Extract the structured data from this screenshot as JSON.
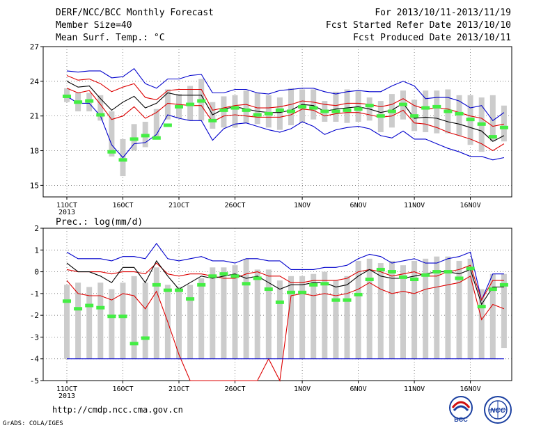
{
  "header": {
    "title": "DERF/NCC/BCC Monthly Forecast",
    "member_size": "Member Size=40",
    "variable": "Mean Surf. Temp.: °C",
    "period": "For 2013/10/11-2013/11/19",
    "fcst_started": "Fcst Started Refer Date 2013/10/10",
    "fcst_produced": "Fcst Produced Date 2013/10/11"
  },
  "footer": {
    "url": "http://cmdp.ncc.cma.gov.cn",
    "grads": "GrADS: COLA/IGES",
    "logo_bcc": "BCC",
    "logo_ncc": "NCC"
  },
  "colors": {
    "max": "#0000cc",
    "spread": "#dd0000",
    "mean": "#000000",
    "bar": "#cccccc",
    "obs": "#44ee44"
  },
  "chart_data": [
    {
      "type": "line",
      "title": "Mean Surf. Temp.: °C",
      "x": "days since forecast start, 2013/10/11 to 2013/11/19",
      "xticks": [
        "11OCT",
        "16OCT",
        "21OCT",
        "26OCT",
        "1NOV",
        "6NOV",
        "11NOV",
        "16NOV"
      ],
      "xtick_days": [
        0,
        5,
        10,
        15,
        21,
        26,
        31,
        36
      ],
      "xtick_year": "2013",
      "ylim": [
        14,
        27
      ],
      "yticks": [
        "15",
        "18",
        "21",
        "24",
        "27"
      ],
      "ytick_values": [
        15,
        18,
        21,
        24,
        27
      ],
      "grid": true,
      "series": [
        {
          "name": "max",
          "color": "#0000cc",
          "values": [
            24.9,
            24.8,
            24.9,
            24.9,
            24.3,
            24.4,
            25.1,
            23.8,
            23.4,
            24.2,
            24.2,
            24.5,
            24.6,
            23.0,
            23.0,
            23.3,
            23.3,
            23.0,
            22.9,
            23.2,
            23.3,
            23.4,
            23.4,
            23.1,
            22.9,
            23.1,
            23.2,
            23.1,
            23.1,
            23.6,
            24.0,
            23.6,
            22.5,
            22.6,
            22.6,
            22.3,
            21.7,
            21.9,
            20.6,
            21.3
          ]
        },
        {
          "name": "upper",
          "color": "#dd0000",
          "values": [
            24.5,
            24.1,
            24.2,
            23.8,
            23.1,
            23.5,
            23.8,
            22.6,
            22.4,
            23.2,
            23.3,
            23.3,
            23.3,
            21.5,
            21.7,
            21.9,
            22.0,
            21.7,
            21.7,
            21.8,
            22.0,
            22.3,
            22.2,
            22.0,
            21.9,
            22.1,
            22.1,
            22.0,
            21.8,
            22.0,
            22.5,
            21.9,
            21.6,
            21.7,
            21.6,
            21.3,
            21.0,
            20.8,
            20.1,
            20.3
          ]
        },
        {
          "name": "mean",
          "color": "#000000",
          "values": [
            24.0,
            23.5,
            23.6,
            22.5,
            21.5,
            22.2,
            22.7,
            21.7,
            22.1,
            23.0,
            22.8,
            22.8,
            22.8,
            21.1,
            21.6,
            21.8,
            21.6,
            21.4,
            21.3,
            21.3,
            21.5,
            22.0,
            21.9,
            21.4,
            21.6,
            21.7,
            21.8,
            21.6,
            21.3,
            21.5,
            22.1,
            20.8,
            20.9,
            20.8,
            20.5,
            20.3,
            20.0,
            19.7,
            18.8,
            19.3
          ]
        },
        {
          "name": "lower",
          "color": "#dd0000",
          "values": [
            23.4,
            23.0,
            23.2,
            22.0,
            20.7,
            21.0,
            21.8,
            20.8,
            21.3,
            22.1,
            22.0,
            21.9,
            21.9,
            20.5,
            21.0,
            21.1,
            21.0,
            20.9,
            20.9,
            20.9,
            21.1,
            21.6,
            21.5,
            21.0,
            21.2,
            21.3,
            21.3,
            21.1,
            20.9,
            21.0,
            21.5,
            20.4,
            20.3,
            20.0,
            19.6,
            19.3,
            19.0,
            18.6,
            18.0,
            18.6
          ]
        },
        {
          "name": "min",
          "color": "#0000cc",
          "values": [
            22.7,
            22.1,
            22.1,
            21.0,
            18.5,
            17.4,
            18.6,
            18.7,
            19.4,
            21.1,
            20.8,
            20.6,
            20.6,
            18.9,
            19.9,
            20.3,
            20.4,
            20.1,
            19.8,
            19.6,
            19.9,
            20.5,
            20.1,
            19.4,
            19.8,
            20.0,
            20.1,
            19.9,
            19.3,
            19.1,
            19.7,
            19.0,
            19.0,
            18.6,
            18.2,
            17.9,
            17.5,
            17.5,
            17.2,
            17.4
          ]
        }
      ],
      "bars": [
        [
          22.2,
          23.4
        ],
        [
          21.4,
          23.0
        ],
        [
          21.4,
          23.0
        ],
        [
          20.6,
          22.8
        ],
        [
          17.5,
          21.4
        ],
        [
          15.8,
          19.0
        ],
        [
          18.0,
          20.3
        ],
        [
          18.3,
          20.5
        ],
        [
          19.0,
          21.6
        ],
        [
          20.7,
          23.3
        ],
        [
          20.8,
          22.9
        ],
        [
          20.6,
          23.6
        ],
        [
          20.6,
          24.2
        ],
        [
          19.9,
          22.2
        ],
        [
          20.0,
          22.7
        ],
        [
          20.0,
          22.8
        ],
        [
          20.4,
          23.2
        ],
        [
          20.3,
          23.0
        ],
        [
          20.0,
          22.8
        ],
        [
          19.8,
          22.6
        ],
        [
          20.2,
          23.4
        ],
        [
          20.4,
          23.3
        ],
        [
          20.7,
          23.3
        ],
        [
          20.5,
          22.3
        ],
        [
          20.5,
          23.1
        ],
        [
          20.4,
          23.3
        ],
        [
          20.5,
          23.2
        ],
        [
          20.6,
          22.6
        ],
        [
          19.6,
          22.3
        ],
        [
          20.0,
          22.9
        ],
        [
          20.7,
          23.2
        ],
        [
          19.7,
          22.4
        ],
        [
          19.6,
          23.2
        ],
        [
          19.5,
          23.2
        ],
        [
          19.5,
          23.3
        ],
        [
          19.3,
          22.8
        ],
        [
          18.5,
          22.8
        ],
        [
          17.9,
          22.6
        ],
        [
          18.8,
          22.8
        ],
        [
          18.8,
          21.9
        ]
      ],
      "obs": [
        22.7,
        22.2,
        22.3,
        21.1,
        17.9,
        17.2,
        19.0,
        19.3,
        19.1,
        20.2,
        21.8,
        22.0,
        22.3,
        20.6,
        21.5,
        21.7,
        21.5,
        21.1,
        21.2,
        21.5,
        21.4,
        21.8,
        21.7,
        21.4,
        21.4,
        21.5,
        21.6,
        21.9,
        21.0,
        21.4,
        22.0,
        21.0,
        21.7,
        21.8,
        21.4,
        21.2,
        20.7,
        20.3,
        19.2,
        20.0
      ]
    },
    {
      "type": "line",
      "title": "Prec.: log(mm/d)",
      "x": "days since forecast start, 2013/10/11 to 2013/11/19",
      "xticks": [
        "11OCT",
        "16OCT",
        "21OCT",
        "26OCT",
        "1NOV",
        "6NOV",
        "11NOV",
        "16NOV"
      ],
      "xtick_days": [
        0,
        5,
        10,
        15,
        21,
        26,
        31,
        36
      ],
      "xtick_year": "2013",
      "ylim": [
        -5,
        2
      ],
      "yticks": [
        "-5",
        "-4",
        "-3",
        "-2",
        "-1",
        "0",
        "1",
        "2"
      ],
      "ytick_values": [
        -5,
        -4,
        -3,
        -2,
        -1,
        0,
        1,
        2
      ],
      "grid": true,
      "series": [
        {
          "name": "max",
          "color": "#0000cc",
          "values": [
            0.9,
            0.6,
            0.6,
            0.6,
            0.5,
            0.7,
            0.7,
            0.6,
            1.3,
            0.6,
            0.5,
            0.6,
            0.7,
            0.5,
            0.5,
            0.4,
            0.6,
            0.6,
            0.5,
            0.5,
            0.1,
            0.1,
            0.1,
            0.2,
            0.2,
            0.3,
            0.6,
            0.8,
            0.7,
            0.4,
            0.5,
            0.6,
            0.4,
            0.4,
            0.6,
            0.7,
            0.9,
            -1.3,
            -0.1,
            -0.1
          ]
        },
        {
          "name": "upper",
          "color": "#dd0000",
          "values": [
            0.1,
            0.0,
            0.0,
            0.0,
            -0.1,
            0.0,
            0.0,
            -0.1,
            0.4,
            -0.1,
            -0.2,
            -0.1,
            -0.1,
            -0.2,
            -0.3,
            -0.3,
            -0.1,
            0.0,
            -0.2,
            -0.2,
            -0.5,
            -0.5,
            -0.4,
            -0.4,
            -0.4,
            -0.3,
            0.0,
            0.1,
            0.0,
            -0.2,
            -0.1,
            0.0,
            -0.2,
            -0.2,
            0.0,
            0.1,
            0.3,
            -1.3,
            -0.4,
            -0.4
          ]
        },
        {
          "name": "mean",
          "color": "#000000",
          "values": [
            0.4,
            0.0,
            0.0,
            -0.2,
            -0.5,
            0.2,
            0.2,
            -0.5,
            0.5,
            -0.2,
            -0.8,
            -0.5,
            -0.2,
            -0.3,
            -0.2,
            -0.1,
            -0.3,
            -0.2,
            -0.5,
            -0.8,
            -0.6,
            -0.6,
            -0.5,
            -0.5,
            -0.7,
            -0.6,
            -0.2,
            0.1,
            -0.2,
            -0.3,
            -0.3,
            -0.2,
            -0.1,
            0.0,
            0.0,
            -0.1,
            0.1,
            -1.5,
            -0.7,
            -0.7
          ]
        },
        {
          "name": "lower",
          "color": "#dd0000",
          "values": [
            -0.4,
            -1.0,
            -1.1,
            -1.1,
            -1.3,
            -1.0,
            -1.1,
            -1.7,
            -0.9,
            -2.3,
            -3.8,
            -5.0,
            -5.0,
            -5.0,
            -5.0,
            -5.0,
            -5.0,
            -5.0,
            -4.0,
            -5.0,
            -1.1,
            -1.0,
            -1.1,
            -1.0,
            -1.1,
            -1.0,
            -0.8,
            -0.5,
            -0.8,
            -1.0,
            -0.9,
            -1.0,
            -0.8,
            -0.7,
            -0.6,
            -0.5,
            -0.2,
            -2.2,
            -1.5,
            -1.7
          ]
        },
        {
          "name": "min",
          "color": "#0000cc",
          "values": [
            -4,
            -4,
            -4,
            -4,
            -4,
            -4,
            -4,
            -4,
            -4,
            -4,
            -4,
            -4,
            -4,
            -4,
            -4,
            -4,
            -4,
            -4,
            -4,
            -4,
            -4,
            -4,
            -4,
            -4,
            -4,
            -4,
            -4,
            -4,
            -4,
            -4,
            -4,
            -4,
            -4,
            -4,
            -4,
            -4,
            -4,
            -4,
            -4,
            -4
          ]
        }
      ],
      "bars": [
        [
          -4,
          -0.6
        ],
        [
          -4,
          -0.5
        ],
        [
          -4,
          -0.7
        ],
        [
          -4,
          -0.5
        ],
        [
          -4,
          -0.8
        ],
        [
          -4,
          -0.5
        ],
        [
          -4,
          -0.2
        ],
        [
          -4,
          -0.5
        ],
        [
          -4,
          0.2
        ],
        [
          -4,
          -0.6
        ],
        [
          -4,
          -0.7
        ],
        [
          -4,
          -0.6
        ],
        [
          -4,
          -0.3
        ],
        [
          -4,
          0.2
        ],
        [
          -4,
          0.2
        ],
        [
          -4,
          0.3
        ],
        [
          -4,
          0.6
        ],
        [
          -4,
          0.1
        ],
        [
          -4,
          0.1
        ],
        [
          -4,
          -0.4
        ],
        [
          -4,
          -0.2
        ],
        [
          -4,
          -0.2
        ],
        [
          -4,
          -0.1
        ],
        [
          -4,
          0.0
        ],
        [
          -4,
          -0.4
        ],
        [
          -4,
          -0.2
        ],
        [
          -4,
          0.5
        ],
        [
          -4,
          0.6
        ],
        [
          -4,
          0.4
        ],
        [
          -4,
          0.5
        ],
        [
          -4,
          0.3
        ],
        [
          -4,
          0.5
        ],
        [
          -4,
          0.6
        ],
        [
          -4,
          0.7
        ],
        [
          -4,
          0.7
        ],
        [
          -4,
          0.5
        ],
        [
          -4,
          0.6
        ],
        [
          -4,
          -0.8
        ],
        [
          -4,
          -0.1
        ],
        [
          -3.5,
          -0.1
        ]
      ],
      "obs": [
        -1.35,
        -1.7,
        -1.55,
        -1.65,
        -2.05,
        -2.05,
        -3.3,
        -3.05,
        -0.6,
        -0.85,
        -0.85,
        -1.25,
        -0.6,
        -0.2,
        -0.1,
        -0.2,
        -0.55,
        -0.3,
        -0.8,
        -1.4,
        -0.95,
        -0.95,
        -0.6,
        -0.55,
        -1.3,
        -1.3,
        -1.05,
        -0.35,
        0.1,
        0.0,
        -0.25,
        -0.35,
        -0.15,
        0.0,
        0.0,
        -0.3,
        0.15,
        -1.6,
        -0.8,
        -0.6
      ]
    }
  ]
}
